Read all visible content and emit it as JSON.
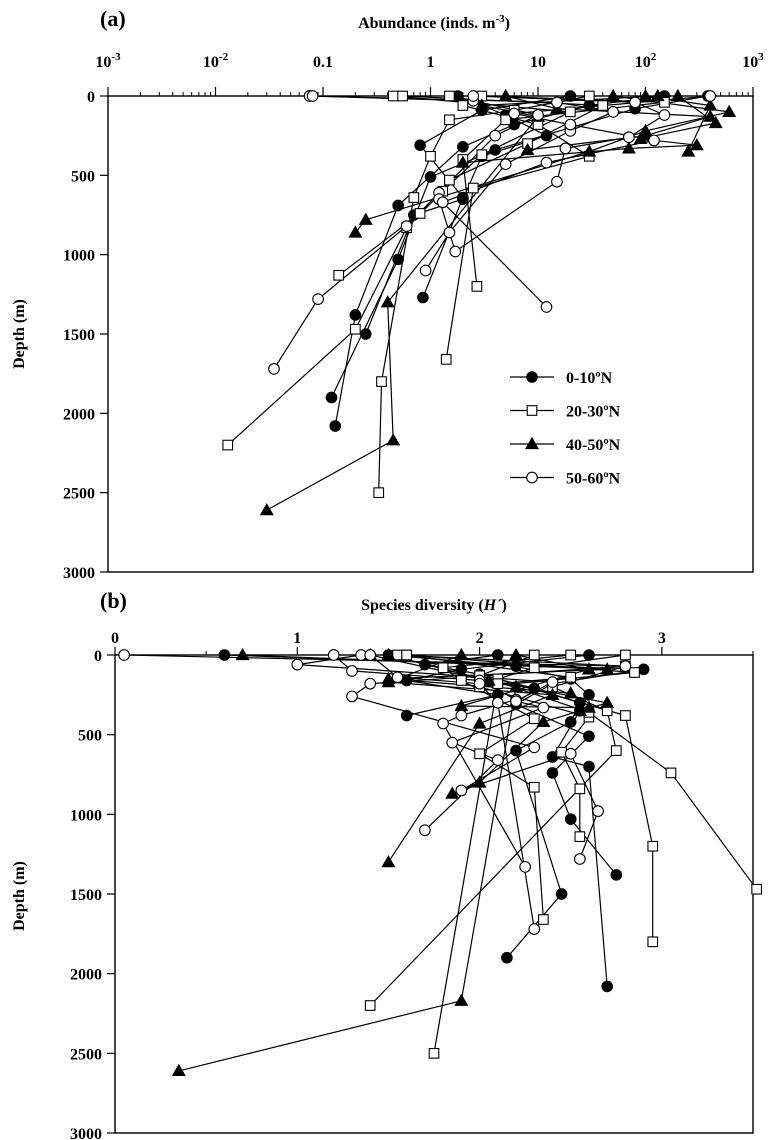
{
  "figure": {
    "legend": [
      {
        "label": "0-10ºN",
        "marker": "filled-circle"
      },
      {
        "label": "20-30ºN",
        "marker": "open-square"
      },
      {
        "label": "40-50ºN",
        "marker": "filled-triangle"
      },
      {
        "label": "50-60ºN",
        "marker": "open-circle"
      }
    ]
  },
  "chart_data": [
    {
      "type": "line",
      "panel_label": "(a)",
      "xlabel": "Abundance (inds. m-3)",
      "xlabel_main": "Abundance (inds. m",
      "xlabel_sup": "-3",
      "xlabel_end": ")",
      "ylabel": "Depth (m)",
      "xscale": "log",
      "xlim": [
        0.001,
        1000
      ],
      "ylim": [
        0,
        3000
      ],
      "y_inverted": true,
      "x_axis_position": "top",
      "x_tick_labels": [
        {
          "base": "10",
          "exp": "-3"
        },
        {
          "base": "10",
          "exp": "-2"
        },
        {
          "text": "0.1"
        },
        {
          "text": "1"
        },
        {
          "text": "10"
        },
        {
          "base": "10",
          "exp": "2"
        },
        {
          "base": "10",
          "exp": "3"
        }
      ],
      "y_ticks": [
        "0",
        "500",
        "1000",
        "1500",
        "2000",
        "2500",
        "3000"
      ],
      "legend_position": "lower-right",
      "series": [
        {
          "name": "0-10ºN",
          "marker": "filled-circle",
          "profiles": [
            {
              "x": [
                1.8,
                5,
                12,
                3,
                2,
                0.7,
                0.25
              ],
              "y": [
                0,
                120,
                250,
                380,
                650,
                750,
                1500
              ]
            },
            {
              "x": [
                380,
                80,
                20,
                4,
                1,
                0.5,
                0.12
              ],
              "y": [
                0,
                80,
                200,
                340,
                510,
                1030,
                1900
              ]
            },
            {
              "x": [
                150,
                30,
                6,
                2,
                0.5,
                0.2,
                0.13
              ],
              "y": [
                0,
                60,
                180,
                320,
                690,
                1380,
                2080
              ]
            },
            {
              "x": [
                20,
                3,
                0.8,
                2,
                0.85
              ],
              "y": [
                0,
                90,
                310,
                640,
                1270
              ]
            }
          ]
        },
        {
          "name": "20-30ºN",
          "marker": "open-square",
          "profiles": [
            {
              "x": [
                0.45,
                20,
                3,
                1.3,
                0.6,
                0.2,
                0.013
              ],
              "y": [
                0,
                100,
                370,
                600,
                830,
                1470,
                2200
              ]
            },
            {
              "x": [
                0.55,
                40,
                8,
                1.5,
                0.8,
                0.14
              ],
              "y": [
                0,
                60,
                300,
                530,
                740,
                1130
              ]
            },
            {
              "x": [
                3,
                150,
                5,
                2,
                2.7
              ],
              "y": [
                0,
                40,
                150,
                400,
                1200
              ]
            },
            {
              "x": [
                30,
                6,
                1.5,
                1,
                0.7,
                0.35,
                0.33
              ],
              "y": [
                0,
                90,
                150,
                380,
                640,
                1800,
                2500
              ]
            },
            {
              "x": [
                1.5,
                2,
                10,
                30,
                2.5,
                1.4
              ],
              "y": [
                0,
                60,
                180,
                380,
                580,
                1660
              ]
            }
          ]
        },
        {
          "name": "40-50ºN",
          "marker": "filled-triangle",
          "profiles": [
            {
              "x": [
                50,
                600,
                100,
                30,
                0.25,
                0.2
              ],
              "y": [
                0,
                100,
                220,
                350,
                780,
                860
              ]
            },
            {
              "x": [
                200,
                450,
                90,
                300,
                70,
                2
              ],
              "y": [
                0,
                170,
                270,
                310,
                330,
                420
              ]
            },
            {
              "x": [
                130,
                3,
                10,
                0.4,
                0.45,
                0.03
              ],
              "y": [
                0,
                60,
                130,
                1300,
                2170,
                2610
              ]
            },
            {
              "x": [
                5,
                15,
                400,
                100,
                8
              ],
              "y": [
                0,
                80,
                130,
                250,
                340
              ]
            },
            {
              "x": [
                100,
                400,
                250
              ],
              "y": [
                0,
                60,
                350
              ]
            }
          ]
        },
        {
          "name": "50-60ºN",
          "marker": "open-circle",
          "profiles": [
            {
              "x": [
                0.075,
                2.5,
                10,
                4,
                1.2,
                0.6,
                0.09,
                0.035
              ],
              "y": [
                0,
                30,
                120,
                250,
                610,
                820,
                1280,
                1720
              ]
            },
            {
              "x": [
                0.08,
                15,
                50,
                20,
                5,
                1.5,
                0.9
              ],
              "y": [
                0,
                40,
                100,
                220,
                430,
                860,
                1100
              ]
            },
            {
              "x": [
                2.5,
                80,
                150,
                70,
                18,
                15,
                1.7,
                1.2
              ],
              "y": [
                0,
                40,
                120,
                260,
                330,
                540,
                980,
                650
              ]
            },
            {
              "x": [
                400,
                6,
                20,
                120,
                12,
                1.3,
                12
              ],
              "y": [
                0,
                110,
                180,
                280,
                420,
                670,
                1330
              ]
            }
          ]
        }
      ]
    },
    {
      "type": "line",
      "panel_label": "(b)",
      "xlabel": "Species diversity (H´)",
      "xlabel_main": "Species diversity (",
      "xlabel_italic": "H´",
      "xlabel_end": ")",
      "ylabel": "Depth (m)",
      "xlim": [
        0,
        3.5
      ],
      "ylim": [
        0,
        3000
      ],
      "y_inverted": true,
      "x_axis_position": "top",
      "x_ticks": [
        "0",
        "1",
        "2",
        "3"
      ],
      "y_ticks": [
        "0",
        "500",
        "1000",
        "1500",
        "2000",
        "2500",
        "3000"
      ],
      "series": [
        {
          "name": "0-10ºN",
          "marker": "filled-circle",
          "profiles": [
            {
              "x": [
                0.6,
                2.9,
                2.4,
                2.2,
                2.6,
                2.4,
                2.5,
                2.75
              ],
              "y": [
                0,
                90,
                180,
                310,
                510,
                740,
                1030,
                1380
              ]
            },
            {
              "x": [
                1.5,
                2.2,
                2.5,
                2.6,
                2.55,
                2.4,
                2.6,
                2.7
              ],
              "y": [
                0,
                70,
                150,
                250,
                350,
                640,
                700,
                2080
              ]
            },
            {
              "x": [
                2.1,
                1.7,
                2.0,
                2.3,
                2.55,
                2.5,
                2.2,
                2.45,
                2.15
              ],
              "y": [
                0,
                60,
                120,
                210,
                300,
                420,
                600,
                1500,
                1900
              ]
            },
            {
              "x": [
                2.6,
                1.9,
                1.6,
                2.1,
                1.6
              ],
              "y": [
                0,
                90,
                160,
                250,
                380
              ]
            }
          ]
        },
        {
          "name": "20-30ºN",
          "marker": "open-square",
          "profiles": [
            {
              "x": [
                1.55,
                2.8,
                2.4,
                2.7,
                2.75,
                1.4
              ],
              "y": [
                0,
                70,
                200,
                350,
                600,
                2200
              ]
            },
            {
              "x": [
                1.6,
                2.85,
                2.0,
                2.6,
                2.45,
                2.55,
                2.55
              ],
              "y": [
                0,
                110,
                200,
                390,
                610,
                840,
                1140
              ]
            },
            {
              "x": [
                2.3,
                2.0,
                2.6,
                3.05,
                3.52
              ],
              "y": [
                0,
                130,
                360,
                740,
                1470
              ]
            },
            {
              "x": [
                2.5,
                1.8,
                1.9,
                2.3,
                2.0,
                2.3,
                2.35
              ],
              "y": [
                0,
                80,
                160,
                400,
                620,
                830,
                1660
              ]
            },
            {
              "x": [
                2.8,
                2.3,
                2.1,
                2.8,
                2.95,
                2.95
              ],
              "y": [
                0,
                80,
                150,
                380,
                1200,
                1800
              ]
            },
            {
              "x": [
                1.6,
                2.5,
                2.1,
                1.75
              ],
              "y": [
                0,
                140,
                180,
                2500
              ]
            }
          ]
        },
        {
          "name": "40-50ºN",
          "marker": "filled-triangle",
          "profiles": [
            {
              "x": [
                0.7,
                2.7,
                1.5,
                2.5
              ],
              "y": [
                0,
                90,
                150,
                240
              ]
            },
            {
              "x": [
                1.5,
                2.05,
                2.7,
                2.55,
                2.35,
                2.0,
                1.85
              ],
              "y": [
                0,
                160,
                300,
                350,
                420,
                800,
                870
              ]
            },
            {
              "x": [
                1.9,
                1.5,
                2.4,
                2.0,
                1.5
              ],
              "y": [
                0,
                170,
                250,
                430,
                1300
              ]
            },
            {
              "x": [
                2.2,
                2.6,
                1.9,
                2.6
              ],
              "y": [
                0,
                90,
                320,
                330
              ]
            },
            {
              "x": [
                1.4,
                2.2,
                1.9,
                0.35
              ],
              "y": [
                0,
                200,
                2170,
                2610
              ]
            }
          ]
        },
        {
          "name": "50-60ºN",
          "marker": "open-circle",
          "profiles": [
            {
              "x": [
                0.05,
                2.8,
                1.4,
                1.3,
                2.3,
                1.9,
                2.5,
                2.65,
                2.55
              ],
              "y": [
                0,
                70,
                180,
                260,
                580,
                850,
                620,
                980,
                1280
              ]
            },
            {
              "x": [
                1.2,
                1.3,
                2.0,
                2.2,
                1.9,
                1.8,
                2.25
              ],
              "y": [
                0,
                100,
                160,
                280,
                380,
                430,
                1330
              ]
            },
            {
              "x": [
                1.35,
                1.0,
                2.4,
                2.2,
                2.35,
                1.85,
                2.1,
                1.7
              ],
              "y": [
                0,
                60,
                170,
                290,
                330,
                550,
                660,
                1100
              ]
            },
            {
              "x": [
                1.4,
                1.55,
                2.0,
                2.1,
                2.3
              ],
              "y": [
                0,
                140,
                180,
                300,
                1720
              ]
            }
          ]
        }
      ]
    }
  ]
}
